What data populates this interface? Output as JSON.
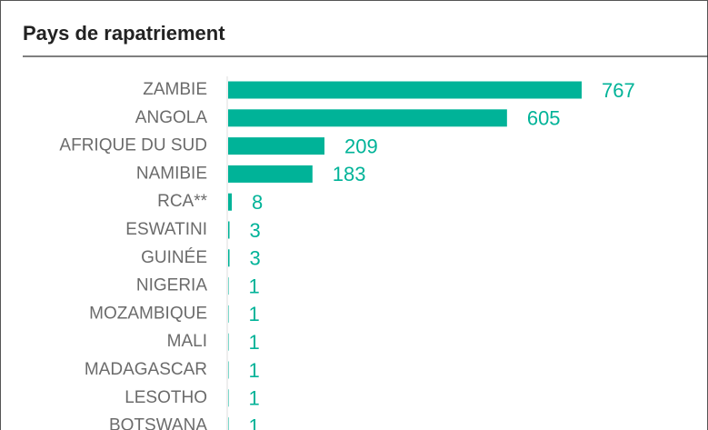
{
  "chart_data": {
    "type": "bar",
    "orientation": "horizontal",
    "title": "Pays de rapatriement",
    "categories": [
      "ZAMBIE",
      "ANGOLA",
      "AFRIQUE DU SUD",
      "NAMIBIE",
      "RCA**",
      "ESWATINI",
      "GUINÉE",
      "NIGERIA",
      "MOZAMBIQUE",
      "MALI",
      "MADAGASCAR",
      "LESOTHO",
      "BOTSWANA"
    ],
    "values": [
      767,
      605,
      209,
      183,
      8,
      3,
      3,
      1,
      1,
      1,
      1,
      1,
      1
    ],
    "color": "#00b398"
  }
}
